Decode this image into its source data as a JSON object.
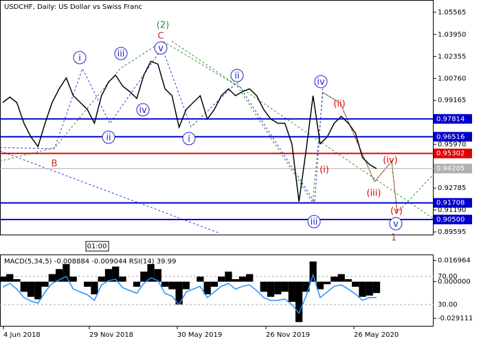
{
  "chart_data": {
    "type": "line",
    "title": "USDCHF, Daily:  US Dollar vs Swiss Franc",
    "time_label": "01:00",
    "values": [
      0.99,
      0.994,
      0.99,
      0.975,
      0.965,
      0.958,
      0.975,
      0.99,
      1.0,
      1.008,
      0.995,
      0.99,
      0.985,
      0.975,
      0.995,
      1.005,
      1.01,
      1.002,
      0.998,
      0.993,
      1.01,
      1.02,
      1.018,
      1.0,
      0.995,
      0.972,
      0.985,
      0.99,
      0.995,
      0.978,
      0.985,
      0.995,
      1.0,
      0.995,
      0.998,
      1.0,
      0.995,
      0.985,
      0.978,
      0.975,
      0.975,
      0.96,
      0.918,
      0.955,
      0.995,
      0.96,
      0.965,
      0.975,
      0.98,
      0.975,
      0.968,
      0.95,
      0.945,
      0.942
    ],
    "color": "#000000",
    "ylim": [
      0.894,
      1.0646
    ],
    "yticks": [
      {
        "value": 1.05565,
        "label": "1.05565"
      },
      {
        "value": 1.0395,
        "label": "1.03950"
      },
      {
        "value": 1.02355,
        "label": "1.02355"
      },
      {
        "value": 1.0076,
        "label": "1.00760"
      },
      {
        "value": 0.99165,
        "label": "0.99165"
      },
      {
        "value": 0.9597,
        "label": "0.95970"
      },
      {
        "value": 0.92785,
        "label": "0.92785"
      },
      {
        "value": 0.9119,
        "label": "0.91190"
      },
      {
        "value": 0.89595,
        "label": "0.89595"
      }
    ],
    "x_labels": [
      "4 Jun 2018",
      "29 Nov 2018",
      "30 May 2019",
      "26 Nov 2019",
      "26 May 2020"
    ],
    "levels": [
      {
        "value": 0.97814,
        "label": "0.97814",
        "color": "#0000cc"
      },
      {
        "value": 0.96516,
        "label": "0.96516",
        "color": "#0000cc"
      },
      {
        "value": 0.95302,
        "label": "0.95302",
        "color": "#e00000"
      },
      {
        "value": 0.94205,
        "label": "0.94205",
        "color": "#b0b0b0"
      },
      {
        "value": 0.91708,
        "label": "0.91708",
        "color": "#0000cc"
      },
      {
        "value": 0.905,
        "label": "0.90500",
        "color": "#0000cc"
      }
    ],
    "annotations": [
      "(2)",
      "C",
      "i",
      "iii",
      "v",
      "ii",
      "iv",
      "i",
      "ii",
      "iv",
      "iii",
      "v",
      "B",
      "(i)",
      "(ii)",
      "(iii)",
      "(iv)",
      "(v)",
      "1"
    ],
    "indicator": {
      "label": "MACD(5,34,5) -0.008884 -0.009044 RSI(14) 39.99",
      "macd_values": [
        0.004,
        0.006,
        0.002,
        -0.008,
        -0.012,
        -0.014,
        -0.004,
        0.006,
        0.01,
        0.014,
        0.004,
        0.0,
        -0.004,
        -0.01,
        0.004,
        0.01,
        0.012,
        0.004,
        0.0,
        -0.004,
        0.008,
        0.014,
        0.01,
        -0.004,
        -0.006,
        -0.018,
        -0.006,
        0.0,
        0.004,
        -0.01,
        -0.004,
        0.004,
        0.008,
        0.002,
        0.004,
        0.006,
        0.0,
        -0.008,
        -0.012,
        -0.01,
        -0.008,
        -0.016,
        -0.032,
        -0.008,
        0.016,
        -0.006,
        -0.002,
        0.004,
        0.006,
        0.002,
        -0.004,
        -0.012,
        -0.011,
        -0.009
      ],
      "rsi_values": [
        55,
        60,
        52,
        40,
        35,
        32,
        48,
        60,
        65,
        70,
        52,
        48,
        44,
        36,
        58,
        64,
        66,
        54,
        50,
        46,
        60,
        68,
        64,
        46,
        42,
        30,
        48,
        52,
        56,
        40,
        48,
        56,
        60,
        52,
        56,
        58,
        50,
        40,
        36,
        36,
        38,
        30,
        18,
        42,
        72,
        40,
        48,
        56,
        58,
        52,
        45,
        36,
        40,
        40
      ],
      "macd_ylim": [
        -0.035,
        0.021
      ],
      "macd_yticks": [
        0.016964,
        {
          "value": 0,
          "label": "0.000000"
        },
        -0.029111
      ],
      "rsi_ylim": [
        0,
        100
      ],
      "rsi_yticks": [
        {
          "value": 70,
          "label": "70.00"
        },
        {
          "value": 30,
          "label": "30.00"
        }
      ],
      "macd_color": "#000000",
      "rsi_color": "#1e90ff"
    }
  }
}
